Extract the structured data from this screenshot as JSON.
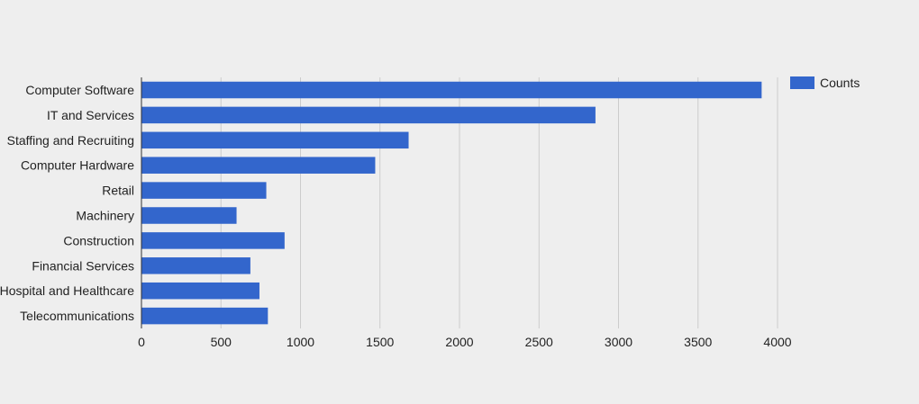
{
  "chart_data": {
    "type": "bar",
    "orientation": "horizontal",
    "categories": [
      "Computer Software",
      "IT and Services",
      "Staffing and Recruiting",
      "Computer Hardware",
      "Retail",
      "Machinery",
      "Construction",
      "Financial Services",
      "Hospital and Healthcare",
      "Telecommunications"
    ],
    "series": [
      {
        "name": "Counts",
        "color": "#3366cc",
        "values": [
          3900,
          2855,
          1680,
          1470,
          785,
          598,
          900,
          685,
          742,
          795
        ]
      }
    ],
    "xlim": [
      0,
      4000
    ],
    "xticks": [
      0,
      500,
      1000,
      1500,
      2000,
      2500,
      3000,
      3500,
      4000
    ],
    "grid": true,
    "legend_position": "top-right"
  }
}
